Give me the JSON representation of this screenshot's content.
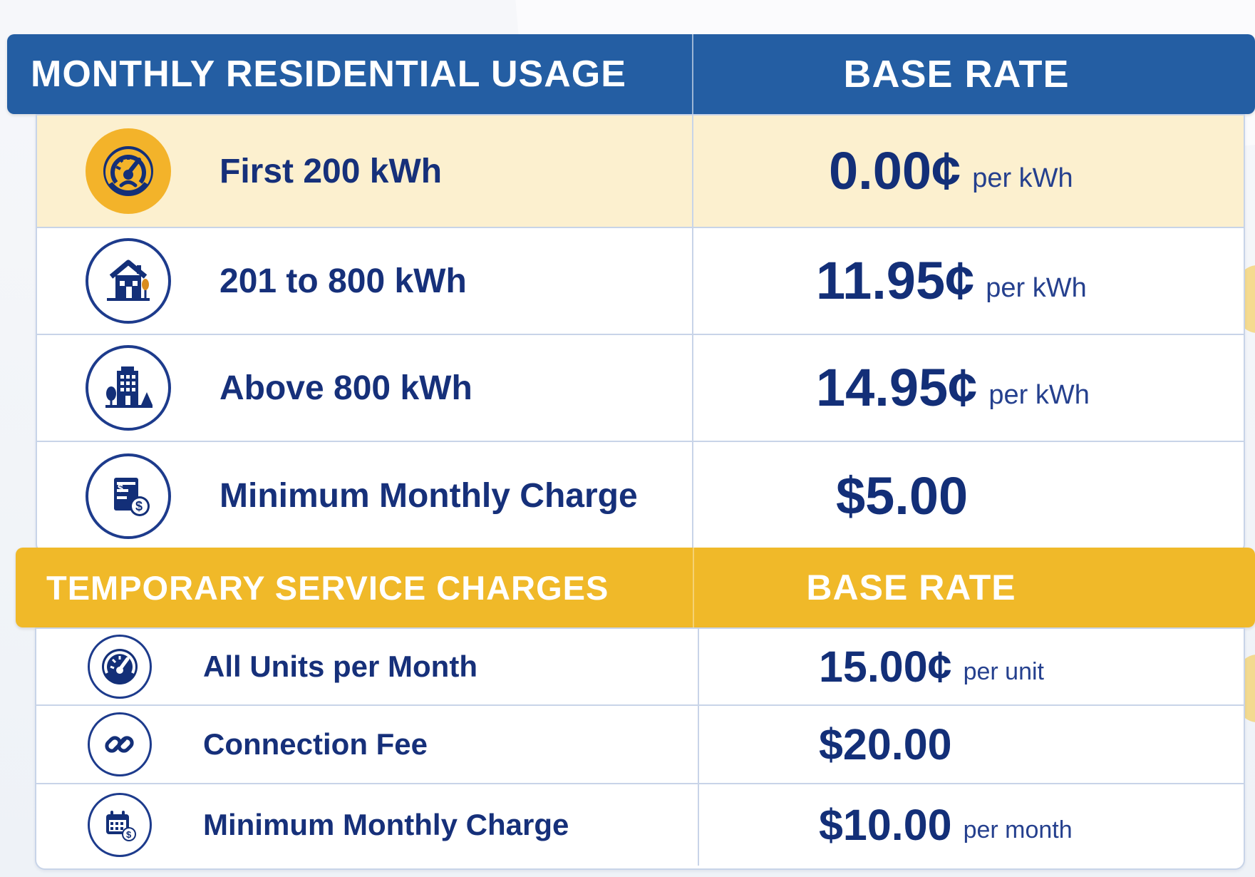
{
  "sections": {
    "residential": {
      "header_left": "MONTHLY RESIDENTIAL USAGE",
      "header_right": "BASE RATE",
      "rows": [
        {
          "icon": "speedometer-icon",
          "label": "First 200 kWh",
          "amount": "0.00¢",
          "unit": "per kWh"
        },
        {
          "icon": "house-icon",
          "label": "201 to 800 kWh",
          "amount": "11.95¢",
          "unit": "per kWh"
        },
        {
          "icon": "building-icon",
          "label": "Above 800 kWh",
          "amount": "14.95¢",
          "unit": "per kWh"
        },
        {
          "icon": "bill-dollar-icon",
          "label": "Minimum Monthly Charge",
          "amount": "$5.00",
          "unit": ""
        }
      ]
    },
    "temporary": {
      "header_left": "TEMPORARY SERVICE CHARGES",
      "header_right": "BASE RATE",
      "rows": [
        {
          "icon": "gauge-icon",
          "label": "All Units per Month",
          "amount": "15.00¢",
          "unit": "per unit"
        },
        {
          "icon": "link-icon",
          "label": "Connection Fee",
          "amount": "$20.00",
          "unit": ""
        },
        {
          "icon": "calendar-dollar-icon",
          "label": "Minimum Monthly Charge",
          "amount": "$10.00",
          "unit": "per month"
        }
      ]
    }
  },
  "colors": {
    "header_blue": "#245ea3",
    "header_gold": "#f0b929",
    "text_navy": "#16307a",
    "highlight_row": "#fcf0cf"
  }
}
